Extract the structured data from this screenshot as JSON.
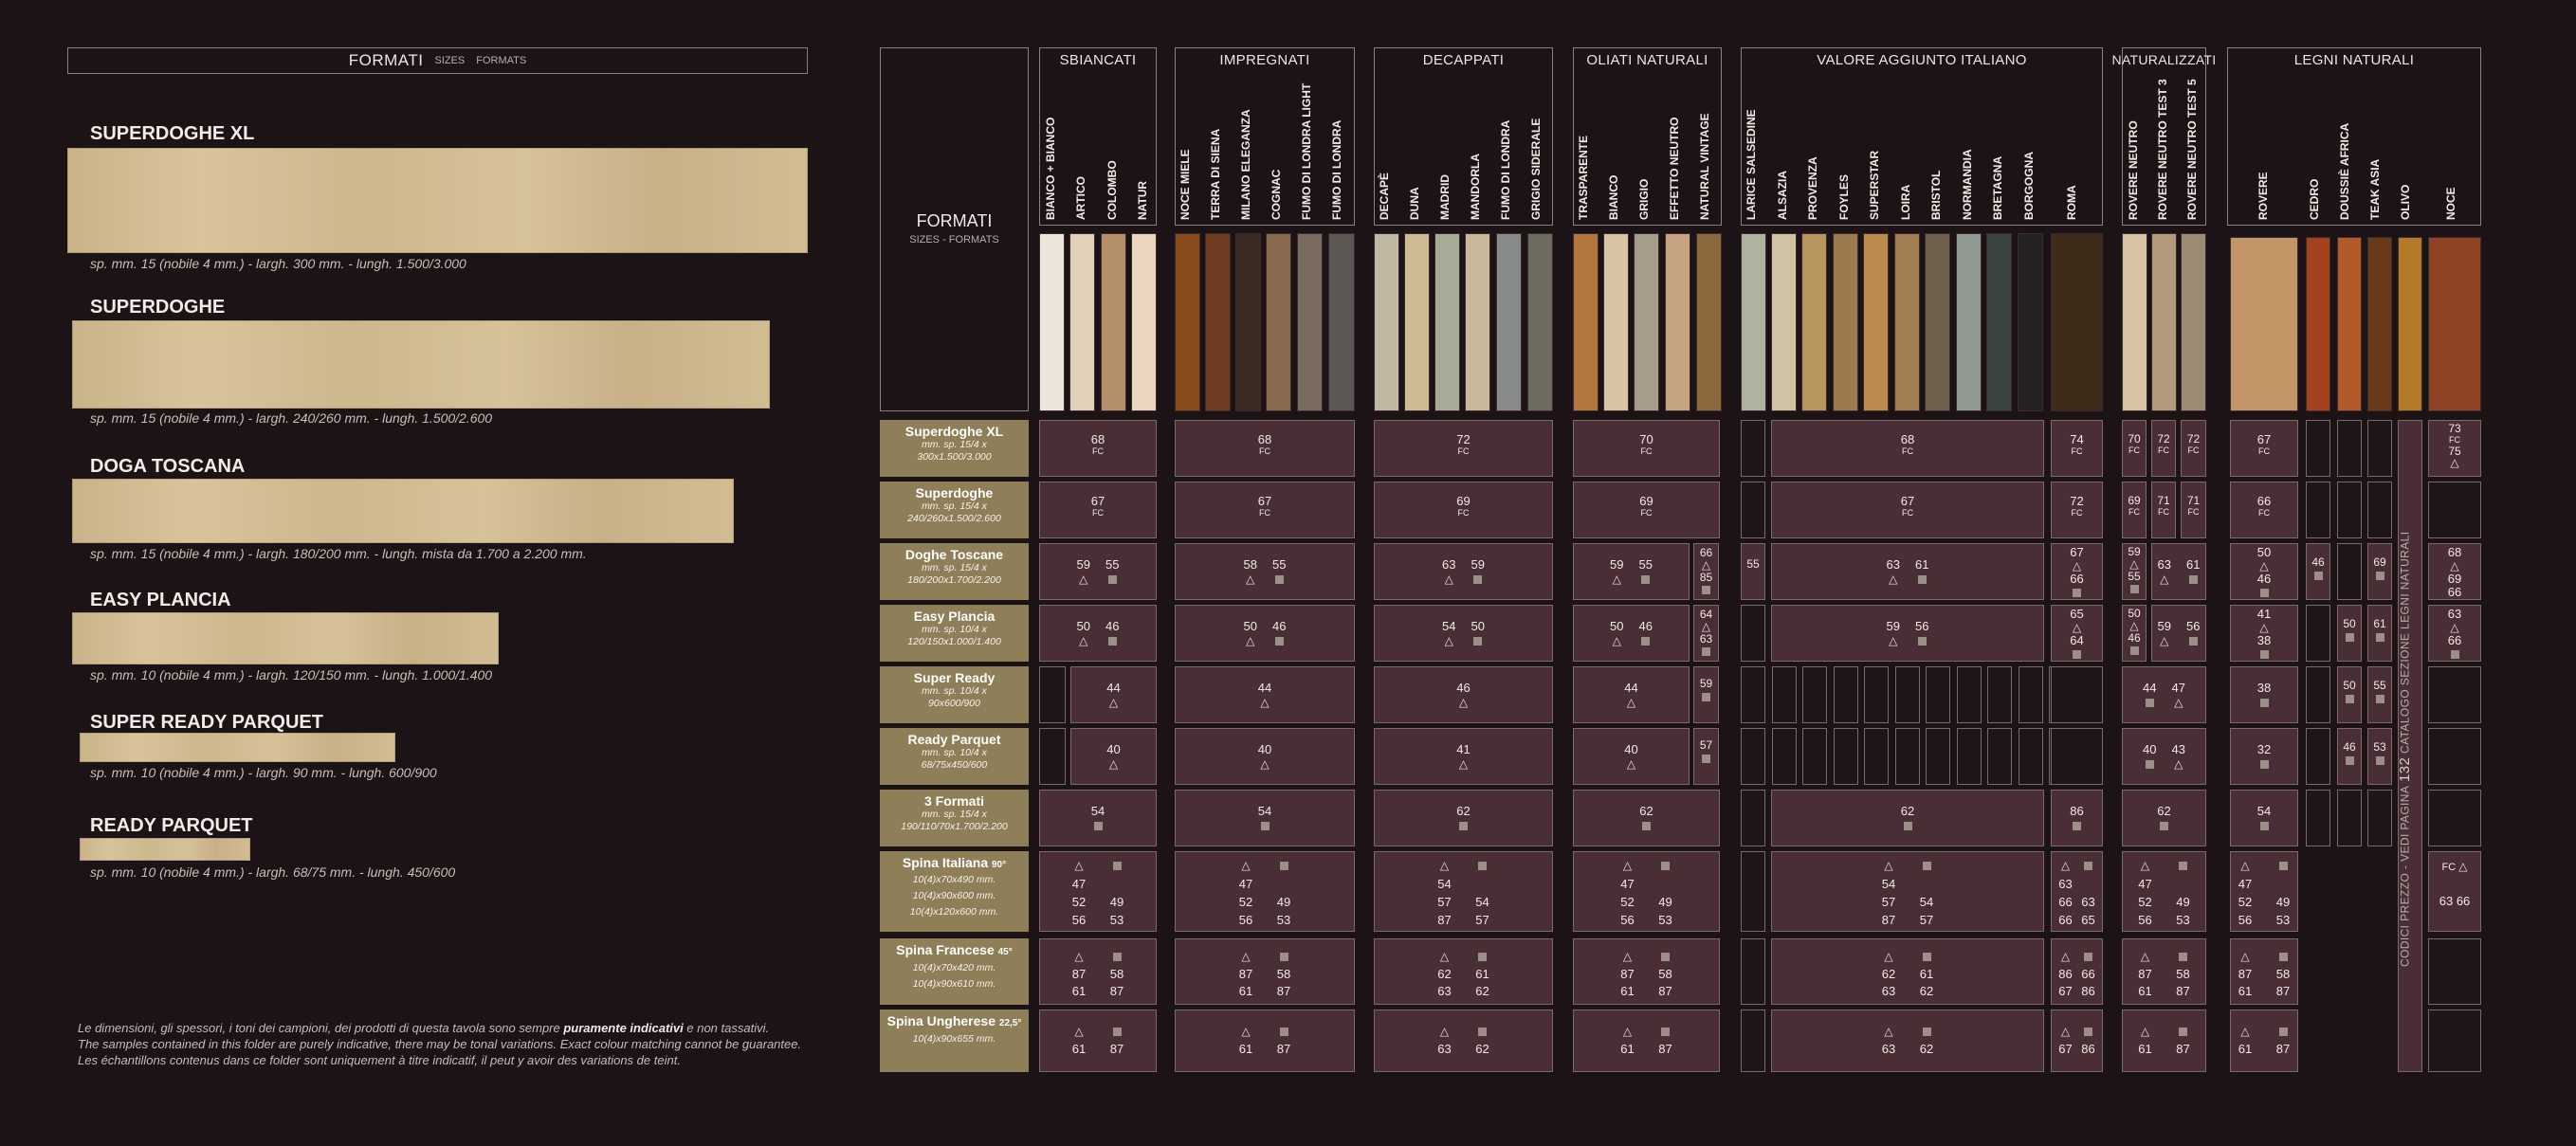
{
  "header": {
    "title": "FORMATI",
    "sub1": "SIZES",
    "sub2": "FORMATS"
  },
  "planks": [
    {
      "name": "SUPERDOGHE XL",
      "dim": "sp. mm. 15 (nobile 4 mm.) - largh. 300 mm. - lungh. 1.500/3.000"
    },
    {
      "name": "SUPERDOGHE",
      "dim": "sp. mm. 15 (nobile 4 mm.) - largh. 240/260 mm. - lungh. 1.500/2.600"
    },
    {
      "name": "DOGA TOSCANA",
      "dim": "sp. mm. 15 (nobile 4 mm.) - largh. 180/200 mm. - lungh. mista da 1.700 a 2.200 mm."
    },
    {
      "name": "EASY PLANCIA",
      "dim": "sp. mm. 10 (nobile 4 mm.) - largh. 120/150 mm. - lungh. 1.000/1.400"
    },
    {
      "name": "SUPER READY PARQUET",
      "dim": "sp. mm. 10 (nobile 4 mm.) - largh. 90 mm. - lungh. 600/900"
    },
    {
      "name": "READY PARQUET",
      "dim": "sp. mm. 10 (nobile 4 mm.) - largh. 68/75 mm. - lungh. 450/600"
    }
  ],
  "disclaimer": {
    "l1a": "Le dimensioni, gli spessori, i toni dei campioni, dei prodotti di questa tavola sono sempre ",
    "l1b": "puramente indicativi",
    "l1c": " e non tassativi.",
    "l2": "The samples contained in this folder are purely indicative, there may be tonal variations. Exact colour matching cannot be guarantee.",
    "l3": "Les échantillons contenus dans ce folder sont uniquement à titre indicatif, il peut y avoir des variations de teint."
  },
  "formati_box": {
    "title": "FORMATI",
    "sub": "SIZES - FORMATS"
  },
  "groups": [
    {
      "name": "SBIANCATI",
      "items": [
        "BIANCO + BIANCO",
        "ARTICO",
        "COLOMBO",
        "NATUR"
      ],
      "colors": [
        "#ece6da",
        "#e1d1ba",
        "#b58e6a",
        "#ead6c0"
      ]
    },
    {
      "name": "IMPREGNATI",
      "items": [
        "NOCE MIELE",
        "TERRA DI SIENA",
        "MILANO ELEGANZA",
        "COGNAC",
        "FUMO DI LONDRA LIGHT",
        "FUMO DI LONDRA"
      ],
      "colors": [
        "#8a4b1d",
        "#6f3c22",
        "#3b2a22",
        "#8a6a4e",
        "#7a6b5f",
        "#5e5854"
      ]
    },
    {
      "name": "DECAPPATI",
      "items": [
        "DECAPÈ",
        "DUNA",
        "MADRID",
        "MANDORLA",
        "FUMO DI LONDRA",
        "GRIGIO SIDERALE"
      ],
      "colors": [
        "#bfb7a2",
        "#cdbb94",
        "#a6ac97",
        "#c7b99a",
        "#878a87",
        "#6d6a5f"
      ]
    },
    {
      "name": "OLIATI NATURALI",
      "items": [
        "TRASPARENTE",
        "BIANCO",
        "GRIGIO",
        "EFFETTO NEUTRO",
        "NATURAL VINTAGE"
      ],
      "colors": [
        "#b3773d",
        "#d8c3a2",
        "#a69c8b",
        "#c6a47f",
        "#8d6a3e"
      ]
    },
    {
      "name": "VALORE AGGIUNTO ITALIANO",
      "items": [
        "LARICE SALSEDINE",
        "ALSAZIA",
        "PROVENZA",
        "FOYLES",
        "SUPERSTAR",
        "LOIRA",
        "BRISTOL",
        "NORMANDIA",
        "BRETAGNA",
        "BORGOGNA",
        "ROMA"
      ],
      "colors": [
        "#aeb39f",
        "#cfc3a3",
        "#b9955e",
        "#9d7a4e",
        "#b98a4c",
        "#a27d52",
        "#6f604d",
        "#8f9a92",
        "#39433f",
        "#252223",
        "#3f2b1a"
      ]
    },
    {
      "name": "NATURALIZZATI",
      "items": [
        "ROVERE NEUTRO",
        "ROVERE NEUTRO TEST 3",
        "ROVERE NEUTRO TEST 5"
      ],
      "colors": [
        "#d8c4a4",
        "#b39a7c",
        "#9b8a74"
      ]
    },
    {
      "name": "LEGNI NATURALI",
      "items": [
        "ROVERE",
        "CEDRO",
        "DOUSSIÈ AFRICA",
        "TEAK ASIA",
        "OLIVO",
        "NOCE"
      ],
      "colors": [
        "#c19565",
        "#a3421c",
        "#b15b2a",
        "#6a3a1a",
        "#b37a2a",
        "#8e4424"
      ]
    }
  ],
  "rows": [
    {
      "name": "Superdoghe XL",
      "spec1": "mm. sp. 15/4 x",
      "spec2": "300x1.500/3.000"
    },
    {
      "name": "Superdoghe",
      "spec1": "mm. sp. 15/4 x",
      "spec2": "240/260x1.500/2.600"
    },
    {
      "name": "Doghe Toscane",
      "spec1": "mm. sp. 15/4 x",
      "spec2": "180/200x1.700/2.200"
    },
    {
      "name": "Easy Plancia",
      "spec1": "mm. sp. 10/4 x",
      "spec2": "120/150x1.000/1.400"
    },
    {
      "name": "Super Ready",
      "spec1": "mm. sp. 10/4 x",
      "spec2": "90x600/900"
    },
    {
      "name": "Ready Parquet",
      "spec1": "mm. sp. 10/4 x",
      "spec2": "68/75x450/600"
    },
    {
      "name": "3 Formati",
      "spec1": "mm. sp. 15/4 x",
      "spec2": "190/110/70x1.700/2.200"
    },
    {
      "name": "Spina Italiana",
      "deg": "90°",
      "spec1": "10(4)x70x490 mm.",
      "spec2": "10(4)x90x600 mm.",
      "spec3": "10(4)x120x600 mm."
    },
    {
      "name": "Spina Francese",
      "deg": "45°",
      "spec1": "10(4)x70x420 mm.",
      "spec2": "10(4)x90x610 mm."
    },
    {
      "name": "Spina Ungherese",
      "deg": "22,5°",
      "spec1": "10(4)x90x655 mm."
    }
  ],
  "marks": {
    "fc": "FC",
    "tri": "△"
  },
  "cells": {
    "sb": {
      "r0": "68",
      "r1": "67",
      "r2a": "59",
      "r2b": "55",
      "r3a": "50",
      "r3b": "46",
      "r4": "44",
      "r5": "40",
      "r6": "54",
      "r7a": "47",
      "r7b": "52",
      "r7c": "49",
      "r7d": "56",
      "r7e": "53",
      "r8a": "87",
      "r8b": "58",
      "r8c": "61",
      "r8d": "87",
      "r9a": "61",
      "r9b": "87"
    },
    "im": {
      "r0": "68",
      "r1": "67",
      "r2a": "58",
      "r2b": "55",
      "r3a": "50",
      "r3b": "46",
      "r4": "44",
      "r5": "40",
      "r6": "54",
      "r7a": "47",
      "r7b": "52",
      "r7c": "49",
      "r7d": "56",
      "r7e": "53",
      "r8a": "87",
      "r8b": "58",
      "r8c": "61",
      "r8d": "87",
      "r9a": "61",
      "r9b": "87"
    },
    "de": {
      "r0": "72",
      "r1": "69",
      "r2a": "63",
      "r2b": "59",
      "r3a": "54",
      "r3b": "50",
      "r4": "46",
      "r5": "41",
      "r6": "62",
      "r7a": "54",
      "r7b": "57",
      "r7c": "54",
      "r7d": "87",
      "r7e": "57",
      "r8a": "62",
      "r8b": "61",
      "r8c": "63",
      "r8d": "62",
      "r9a": "63",
      "r9b": "62"
    },
    "ol": {
      "r0": "70",
      "r1": "69",
      "r2a": "59",
      "r2b": "55",
      "r3a": "50",
      "r3b": "46",
      "r4": "44",
      "r5": "40",
      "r6": "62",
      "r7a": "47",
      "r7b": "52",
      "r7c": "49",
      "r7d": "56",
      "r7e": "53",
      "r8a": "87",
      "r8b": "58",
      "r8c": "61",
      "r8d": "87",
      "r9a": "61",
      "r9b": "87",
      "v2a": "66",
      "v2b": "85",
      "v3a": "64",
      "v3b": "63",
      "v4": "59",
      "v5": "57"
    },
    "va": {
      "r0": "68",
      "r1": "67",
      "r2a": "63",
      "r2b": "61",
      "r3a": "59",
      "r3b": "56",
      "r6": "62",
      "r7a": "54",
      "r7b": "57",
      "r7c": "54",
      "r7d": "87",
      "r7e": "57",
      "r8a": "62",
      "r8b": "61",
      "r8c": "63",
      "r8d": "62",
      "r9a": "63",
      "r9b": "62",
      "ls2": "55"
    },
    "ro": {
      "r0": "74",
      "r1": "72",
      "r2a": "67",
      "r2b": "66",
      "r3a": "65",
      "r3b": "64",
      "r6": "86",
      "r7a": "63",
      "r7b": "66",
      "r7c": "63",
      "r7d": "66",
      "r7e": "65",
      "r8a": "86",
      "r8b": "66",
      "r8c": "67",
      "r8d": "86",
      "r9a": "67",
      "r9b": "86"
    },
    "na": {
      "r0a": "70",
      "r0b": "72",
      "r0c": "72",
      "r1a": "69",
      "r1b": "71",
      "r1c": "71",
      "r2a": "59",
      "r2b": "55",
      "r2c": "63",
      "r2d": "61",
      "r3a": "50",
      "r3b": "46",
      "r3c": "59",
      "r3d": "56",
      "r4a": "44",
      "r4b": "47",
      "r5a": "40",
      "r5b": "43",
      "r6": "62",
      "r7a": "47",
      "r7b": "52",
      "r7c": "49",
      "r7d": "56",
      "r7e": "53",
      "r8a": "87",
      "r8b": "58",
      "r8c": "61",
      "r8d": "87",
      "r9a": "61",
      "r9b": "87"
    },
    "ln": {
      "r0": "67",
      "r1": "66",
      "r2a": "50",
      "r2b": "46",
      "r2c": "46",
      "r2d": "69",
      "r3a": "41",
      "r3b": "38",
      "r3c": "50",
      "r3d": "61",
      "r4a": "38",
      "r4b": "50",
      "r4c": "55",
      "r5a": "32",
      "r5b": "46",
      "r5c": "53",
      "r6": "54",
      "r7a": "47",
      "r7b": "52",
      "r7c": "49",
      "r7d": "56",
      "r7e": "53",
      "r8a": "87",
      "r8b": "58",
      "r8c": "61",
      "r8d": "87",
      "r9a": "61",
      "r9b": "87",
      "n0a": "73",
      "n0b": "75",
      "n2a": "68",
      "n2b": "69",
      "n2c": "66",
      "n3a": "63",
      "n3b": "66",
      "n7a": "63",
      "n7b": "66"
    }
  },
  "codici": {
    "pre": "CODICI PREZZO - VEDI PAGINA",
    "num": "132",
    "post": "CATALOGO SEZIONE LEGNI NATURALI"
  }
}
